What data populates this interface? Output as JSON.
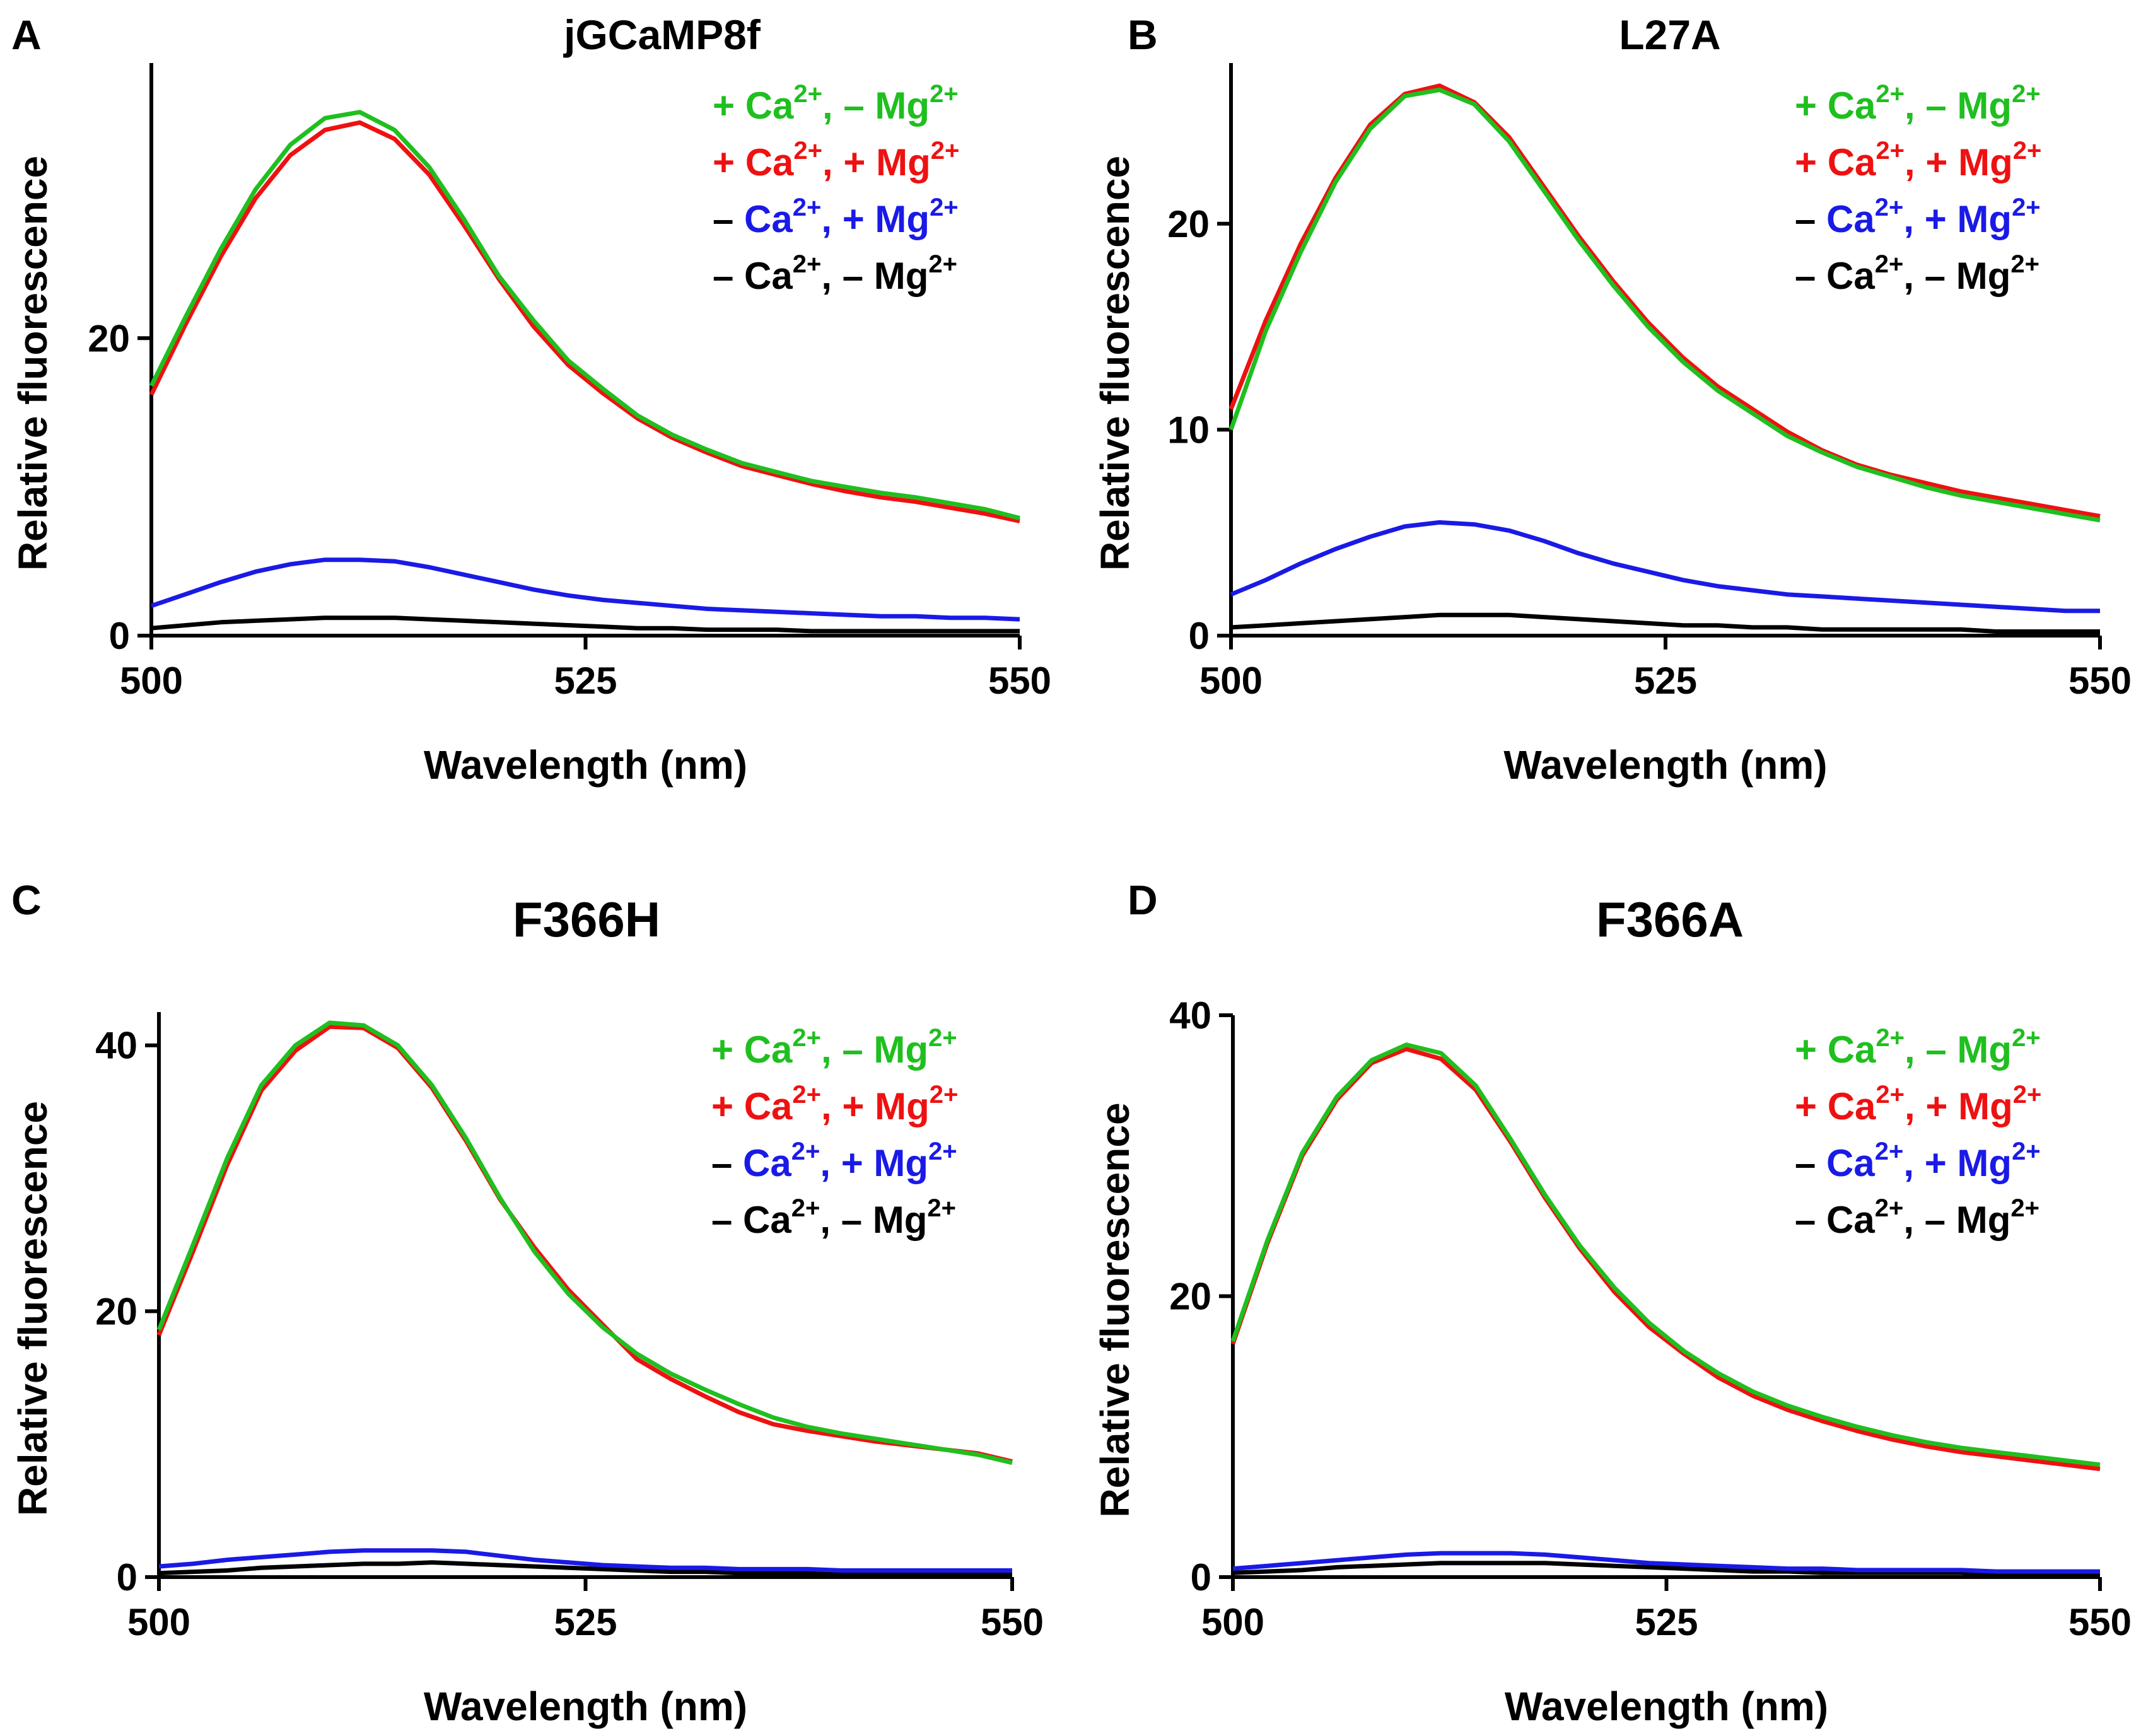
{
  "chart_data": [
    {
      "panel": "A",
      "title": "jGCaMP8f",
      "type": "line",
      "xlabel": "Wavelength (nm)",
      "ylabel": "Relative fluorescence",
      "xlim": [
        500,
        550
      ],
      "ylim": [
        0,
        38.5
      ],
      "xticks": [
        "500",
        "525",
        "550"
      ],
      "yticks": [
        "0",
        "20"
      ],
      "x": [
        500,
        502,
        504,
        506,
        508,
        510,
        512,
        514,
        516,
        518,
        520,
        522,
        524,
        526,
        528,
        530,
        532,
        534,
        536,
        538,
        540,
        542,
        544,
        546,
        548,
        550
      ],
      "series": [
        {
          "name": "+ Ca2+, − Mg2+",
          "color": "#1fbf1f",
          "values": [
            16.8,
            21.5,
            26.0,
            30.0,
            33.0,
            34.8,
            35.2,
            34.0,
            31.5,
            28.0,
            24.2,
            21.2,
            18.5,
            16.6,
            14.8,
            13.5,
            12.5,
            11.6,
            11.0,
            10.4,
            10.0,
            9.6,
            9.3,
            8.9,
            8.5,
            7.9
          ]
        },
        {
          "name": "+ Ca2+, + Mg2+",
          "color": "#ee1111",
          "values": [
            16.2,
            21.0,
            25.5,
            29.4,
            32.3,
            34.0,
            34.5,
            33.4,
            31.0,
            27.6,
            24.0,
            20.8,
            18.2,
            16.3,
            14.6,
            13.3,
            12.3,
            11.4,
            10.8,
            10.2,
            9.7,
            9.3,
            9.0,
            8.6,
            8.2,
            7.7
          ]
        },
        {
          "name": "− Ca2+, + Mg2+",
          "color": "#1a1ae6",
          "values": [
            2.0,
            2.8,
            3.6,
            4.3,
            4.8,
            5.1,
            5.1,
            5.0,
            4.6,
            4.1,
            3.6,
            3.1,
            2.7,
            2.4,
            2.2,
            2.0,
            1.8,
            1.7,
            1.6,
            1.5,
            1.4,
            1.3,
            1.3,
            1.2,
            1.2,
            1.1
          ]
        },
        {
          "name": "− Ca2+, − Mg2+",
          "color": "#000000",
          "values": [
            0.5,
            0.7,
            0.9,
            1.0,
            1.1,
            1.2,
            1.2,
            1.2,
            1.1,
            1.0,
            0.9,
            0.8,
            0.7,
            0.6,
            0.5,
            0.5,
            0.4,
            0.4,
            0.4,
            0.3,
            0.3,
            0.3,
            0.3,
            0.3,
            0.3,
            0.3
          ]
        }
      ]
    },
    {
      "panel": "B",
      "title": "L27A",
      "type": "line",
      "xlabel": "Wavelength (nm)",
      "ylabel": "Relative fluorescence",
      "xlim": [
        500,
        550
      ],
      "ylim": [
        0,
        27.8
      ],
      "xticks": [
        "500",
        "525",
        "550"
      ],
      "yticks": [
        "0",
        "10",
        "20"
      ],
      "x": [
        500,
        502,
        504,
        506,
        508,
        510,
        512,
        514,
        516,
        518,
        520,
        522,
        524,
        526,
        528,
        530,
        532,
        534,
        536,
        538,
        540,
        542,
        544,
        546,
        548,
        550
      ],
      "series": [
        {
          "name": "+ Ca2+, − Mg2+",
          "color": "#1fbf1f",
          "values": [
            10.0,
            14.8,
            18.6,
            22.0,
            24.6,
            26.2,
            26.5,
            25.8,
            24.0,
            21.6,
            19.2,
            17.0,
            15.0,
            13.3,
            11.9,
            10.8,
            9.7,
            8.9,
            8.2,
            7.7,
            7.2,
            6.8,
            6.5,
            6.2,
            5.9,
            5.6
          ]
        },
        {
          "name": "+ Ca2+, + Mg2+",
          "color": "#ee1111",
          "values": [
            11.0,
            15.3,
            19.0,
            22.2,
            24.8,
            26.3,
            26.7,
            25.9,
            24.2,
            21.8,
            19.4,
            17.2,
            15.2,
            13.5,
            12.1,
            11.0,
            9.9,
            9.0,
            8.3,
            7.8,
            7.4,
            7.0,
            6.7,
            6.4,
            6.1,
            5.8
          ]
        },
        {
          "name": "− Ca2+, + Mg2+",
          "color": "#1a1ae6",
          "values": [
            2.0,
            2.7,
            3.5,
            4.2,
            4.8,
            5.3,
            5.5,
            5.4,
            5.1,
            4.6,
            4.0,
            3.5,
            3.1,
            2.7,
            2.4,
            2.2,
            2.0,
            1.9,
            1.8,
            1.7,
            1.6,
            1.5,
            1.4,
            1.3,
            1.2,
            1.2
          ]
        },
        {
          "name": "− Ca2+, − Mg2+",
          "color": "#000000",
          "values": [
            0.4,
            0.5,
            0.6,
            0.7,
            0.8,
            0.9,
            1.0,
            1.0,
            1.0,
            0.9,
            0.8,
            0.7,
            0.6,
            0.5,
            0.5,
            0.4,
            0.4,
            0.3,
            0.3,
            0.3,
            0.3,
            0.3,
            0.2,
            0.2,
            0.2,
            0.2
          ]
        }
      ]
    },
    {
      "panel": "C",
      "title": "F366H",
      "type": "line",
      "xlabel": "Wavelength (nm)",
      "ylabel": "Relative fluorescence",
      "xlim": [
        500,
        550
      ],
      "ylim": [
        0,
        42.5
      ],
      "xticks": [
        "500",
        "525",
        "550"
      ],
      "yticks": [
        "0",
        "20",
        "40"
      ],
      "x": [
        500,
        502,
        504,
        506,
        508,
        510,
        512,
        514,
        516,
        518,
        520,
        522,
        524,
        526,
        528,
        530,
        532,
        534,
        536,
        538,
        540,
        542,
        544,
        546,
        548,
        550
      ],
      "series": [
        {
          "name": "+ Ca2+, − Mg2+",
          "color": "#1fbf1f",
          "values": [
            18.6,
            25.0,
            31.5,
            37.0,
            40.0,
            41.7,
            41.5,
            40.0,
            37.0,
            33.0,
            28.5,
            24.5,
            21.3,
            18.8,
            16.8,
            15.3,
            14.1,
            13.0,
            12.0,
            11.3,
            10.8,
            10.4,
            10.0,
            9.6,
            9.2,
            8.6
          ]
        },
        {
          "name": "+ Ca2+, + Mg2+",
          "color": "#ee1111",
          "values": [
            18.2,
            24.5,
            31.0,
            36.6,
            39.6,
            41.4,
            41.3,
            39.8,
            36.8,
            32.8,
            28.4,
            24.8,
            21.6,
            19.0,
            16.4,
            14.9,
            13.6,
            12.4,
            11.5,
            11.0,
            10.6,
            10.2,
            9.9,
            9.6,
            9.3,
            8.7
          ]
        },
        {
          "name": "− Ca2+, + Mg2+",
          "color": "#1a1ae6",
          "values": [
            0.8,
            1.0,
            1.3,
            1.5,
            1.7,
            1.9,
            2.0,
            2.0,
            2.0,
            1.9,
            1.6,
            1.3,
            1.1,
            0.9,
            0.8,
            0.7,
            0.7,
            0.6,
            0.6,
            0.6,
            0.5,
            0.5,
            0.5,
            0.5,
            0.5,
            0.5
          ]
        },
        {
          "name": "− Ca2+, − Mg2+",
          "color": "#000000",
          "values": [
            0.3,
            0.4,
            0.5,
            0.7,
            0.8,
            0.9,
            1.0,
            1.0,
            1.1,
            1.0,
            0.9,
            0.8,
            0.7,
            0.6,
            0.5,
            0.4,
            0.4,
            0.3,
            0.3,
            0.3,
            0.3,
            0.3,
            0.2,
            0.2,
            0.2,
            0.2
          ]
        }
      ]
    },
    {
      "panel": "D",
      "title": "F366A",
      "type": "line",
      "xlabel": "Wavelength (nm)",
      "ylabel": "Relative fluorescence",
      "xlim": [
        500,
        550
      ],
      "ylim": [
        0,
        40.0
      ],
      "xticks": [
        "500",
        "525",
        "550"
      ],
      "yticks": [
        "0",
        "20",
        "40"
      ],
      "x": [
        500,
        502,
        504,
        506,
        508,
        510,
        512,
        514,
        516,
        518,
        520,
        522,
        524,
        526,
        528,
        530,
        532,
        534,
        536,
        538,
        540,
        542,
        544,
        546,
        548,
        550
      ],
      "series": [
        {
          "name": "+ Ca2+, − Mg2+",
          "color": "#1fbf1f",
          "values": [
            16.8,
            24.0,
            30.2,
            34.2,
            36.8,
            37.9,
            37.3,
            35.0,
            31.2,
            27.2,
            23.6,
            20.6,
            18.1,
            16.1,
            14.5,
            13.2,
            12.2,
            11.4,
            10.7,
            10.1,
            9.6,
            9.2,
            8.9,
            8.6,
            8.3,
            8.0
          ]
        },
        {
          "name": "+ Ca2+, + Mg2+",
          "color": "#ee1111",
          "values": [
            16.6,
            23.8,
            30.0,
            34.0,
            36.6,
            37.6,
            36.9,
            34.7,
            31.0,
            27.0,
            23.4,
            20.3,
            17.8,
            15.9,
            14.2,
            12.9,
            11.9,
            11.1,
            10.4,
            9.8,
            9.3,
            8.9,
            8.6,
            8.3,
            8.0,
            7.7
          ]
        },
        {
          "name": "− Ca2+, + Mg2+",
          "color": "#1a1ae6",
          "values": [
            0.6,
            0.8,
            1.0,
            1.2,
            1.4,
            1.6,
            1.7,
            1.7,
            1.7,
            1.6,
            1.4,
            1.2,
            1.0,
            0.9,
            0.8,
            0.7,
            0.6,
            0.6,
            0.5,
            0.5,
            0.5,
            0.5,
            0.4,
            0.4,
            0.4,
            0.4
          ]
        },
        {
          "name": "− Ca2+, − Mg2+",
          "color": "#000000",
          "values": [
            0.3,
            0.4,
            0.5,
            0.7,
            0.8,
            0.9,
            1.0,
            1.0,
            1.0,
            1.0,
            0.9,
            0.8,
            0.7,
            0.6,
            0.5,
            0.4,
            0.4,
            0.3,
            0.3,
            0.3,
            0.3,
            0.3,
            0.2,
            0.2,
            0.2,
            0.2
          ]
        }
      ]
    }
  ],
  "legend": [
    {
      "sign1": "+",
      "ion1": "Ca",
      "sup1": "2+",
      "sep": ",",
      "sign2": "–",
      "ion2": "Mg",
      "sup2": "2+",
      "color": "#1fbf1f",
      "dash_color": "#1fbf1f"
    },
    {
      "sign1": "+",
      "ion1": "Ca",
      "sup1": "2+",
      "sep": ",",
      "sign2": "+",
      "ion2": "Mg",
      "sup2": "2+",
      "color": "#ee1111",
      "dash_color": "#ee1111"
    },
    {
      "sign1": "–",
      "ion1": "Ca",
      "sup1": "2+",
      "sep": ",",
      "sign2": "+",
      "ion2": "Mg",
      "sup2": "2+",
      "color": "#1a1ae6",
      "dash_color": "#000000"
    },
    {
      "sign1": "–",
      "ion1": "Ca",
      "sup1": "2+",
      "sep": ",",
      "sign2": "–",
      "ion2": "Mg",
      "sup2": "2+",
      "color": "#000000",
      "dash_color": "#000000"
    }
  ]
}
